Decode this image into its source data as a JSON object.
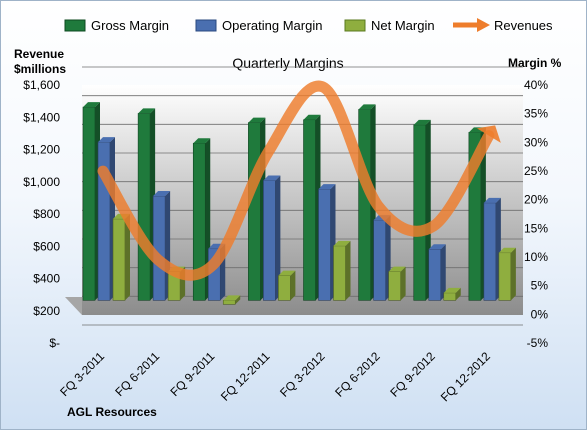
{
  "chart_data": {
    "type": "bar",
    "title": "Quarterly Margins",
    "company": "AGL Resources",
    "left_axis_label_line1": "Revenue",
    "left_axis_label_line2": "$millions",
    "right_axis_label": "Margin %",
    "categories": [
      "FQ 3-2011",
      "FQ 6-2011",
      "FQ 9-2011",
      "FQ 12-2011",
      "FQ 3-2012",
      "FQ 6-2012",
      "FQ 9-2012",
      "FQ 12-2012"
    ],
    "left_ticks": [
      "$-",
      "$200",
      "$400",
      "$600",
      "$800",
      "$1,000",
      "$1,200",
      "$1,400",
      "$1,600"
    ],
    "right_ticks": [
      "-5%",
      "0%",
      "5%",
      "10%",
      "15%",
      "20%",
      "25%",
      "30%",
      "35%",
      "40%"
    ],
    "ylim_left": [
      0,
      1600
    ],
    "ylim_right": [
      -5,
      40
    ],
    "legend_position": "top",
    "grid": true,
    "series": [
      {
        "name": "Gross Margin",
        "axis": "right",
        "kind": "bar",
        "color": "#1f7a3c",
        "values": [
          33.7,
          32.6,
          27.4,
          31.0,
          31.5,
          33.3,
          30.6,
          29.3
        ]
      },
      {
        "name": "Operating Margin",
        "axis": "right",
        "kind": "bar",
        "color": "#4a6fb0",
        "values": [
          27.6,
          18.2,
          9.0,
          20.9,
          19.4,
          14.0,
          8.9,
          17.0
        ]
      },
      {
        "name": "Net Margin",
        "axis": "right",
        "kind": "bar",
        "color": "#8fae3f",
        "values": [
          14.2,
          5.0,
          -0.7,
          4.3,
          9.5,
          5.0,
          1.3,
          8.3
        ]
      },
      {
        "name": "Revenues",
        "axis": "left",
        "kind": "line",
        "color": "#ee7d2c",
        "values": [
          880,
          330,
          300,
          1000,
          1400,
          660,
          540,
          1100
        ]
      }
    ]
  }
}
